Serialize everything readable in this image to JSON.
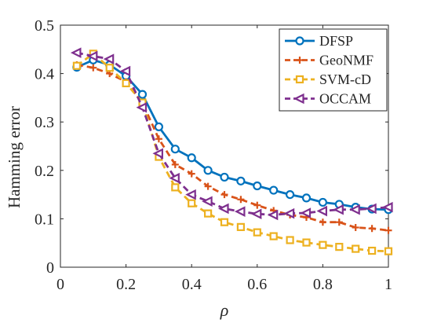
{
  "chart_data": {
    "type": "line",
    "title": "",
    "xlabel": "ρ",
    "ylabel": "Hamming error",
    "xlim": [
      0,
      1
    ],
    "ylim": [
      0,
      0.5
    ],
    "xticks": [
      0,
      0.2,
      0.4,
      0.6,
      0.8,
      1
    ],
    "xtick_labels": [
      "0",
      "0.2",
      "0.4",
      "0.6",
      "0.8",
      "1"
    ],
    "yticks": [
      0,
      0.1,
      0.2,
      0.3,
      0.4,
      0.5
    ],
    "ytick_labels": [
      "0",
      "0.1",
      "0.2",
      "0.3",
      "0.4",
      "0.5"
    ],
    "grid": false,
    "legend_position": "top-right",
    "x": [
      0.05,
      0.1,
      0.15,
      0.2,
      0.25,
      0.3,
      0.35,
      0.4,
      0.45,
      0.5,
      0.55,
      0.6,
      0.65,
      0.7,
      0.75,
      0.8,
      0.85,
      0.9,
      0.95,
      1.0
    ],
    "series": [
      {
        "name": "DFSP",
        "color": "#0072BD",
        "marker": "circle",
        "line": "solid",
        "values": [
          0.413,
          0.428,
          0.418,
          0.395,
          0.357,
          0.29,
          0.244,
          0.226,
          0.2,
          0.186,
          0.178,
          0.168,
          0.159,
          0.15,
          0.143,
          0.134,
          0.13,
          0.124,
          0.12,
          0.119
        ]
      },
      {
        "name": "GeoNMF",
        "color": "#D95319",
        "marker": "plus",
        "line": "dashed",
        "values": [
          0.418,
          0.412,
          0.4,
          0.383,
          0.34,
          0.265,
          0.212,
          0.193,
          0.167,
          0.15,
          0.14,
          0.128,
          0.117,
          0.108,
          0.103,
          0.093,
          0.093,
          0.082,
          0.08,
          0.076
        ]
      },
      {
        "name": "SVM-cD",
        "color": "#EDB120",
        "marker": "square",
        "line": "dashed",
        "values": [
          0.416,
          0.441,
          0.412,
          0.38,
          0.34,
          0.228,
          0.165,
          0.132,
          0.111,
          0.093,
          0.083,
          0.072,
          0.064,
          0.056,
          0.051,
          0.046,
          0.042,
          0.038,
          0.034,
          0.033
        ]
      },
      {
        "name": "OCCAM",
        "color": "#7E2F8E",
        "marker": "triangle-left",
        "line": "dashed",
        "values": [
          0.443,
          0.436,
          0.43,
          0.405,
          0.33,
          0.235,
          0.184,
          0.15,
          0.136,
          0.121,
          0.115,
          0.11,
          0.108,
          0.111,
          0.112,
          0.116,
          0.119,
          0.119,
          0.121,
          0.124
        ]
      }
    ]
  }
}
